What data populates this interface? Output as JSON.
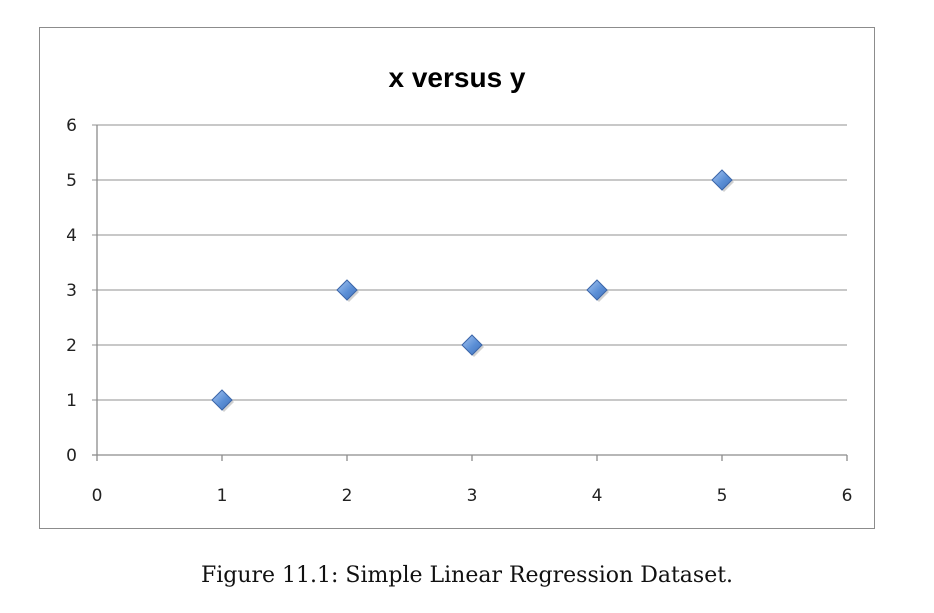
{
  "chart_data": {
    "type": "scatter",
    "title": "x versus y",
    "xlabel": "",
    "ylabel": "",
    "xlim": [
      0,
      6
    ],
    "ylim": [
      0,
      6
    ],
    "x_ticks": [
      "0",
      "1",
      "2",
      "3",
      "4",
      "5",
      "6"
    ],
    "y_ticks": [
      "0",
      "1",
      "2",
      "3",
      "4",
      "5",
      "6"
    ],
    "grid": "horizontal",
    "legend": "none",
    "marker": "diamond",
    "marker_color": "#5b8fd6",
    "series": [
      {
        "x": [
          1,
          2,
          3,
          4,
          5
        ],
        "y": [
          1,
          3,
          2,
          3,
          5
        ]
      }
    ]
  },
  "caption": "Figure 11.1: Simple Linear Regression Dataset."
}
